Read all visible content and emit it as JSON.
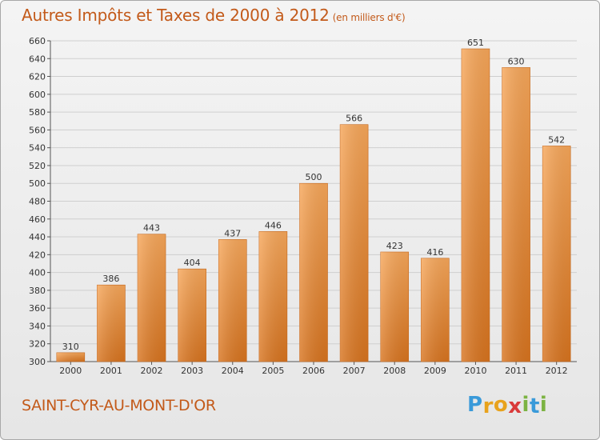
{
  "title": {
    "main": "Autres Impôts et Taxes de 2000 à 2012",
    "unit": "(en milliers d'€)"
  },
  "commune": "SAINT-CYR-AU-MONT-D'OR",
  "logo": {
    "letters": [
      "P",
      "r",
      "o",
      "x",
      "i",
      "t",
      "i"
    ],
    "colors": [
      "#3a9ad9",
      "#e8a21c",
      "#e8a21c",
      "#d93a3a",
      "#7cb342",
      "#3a9ad9",
      "#7cb342"
    ]
  },
  "chart_data": {
    "type": "bar",
    "title": "Autres Impôts et Taxes de 2000 à 2012",
    "subtitle": "(en milliers d'€)",
    "categories": [
      "2000",
      "2001",
      "2002",
      "2003",
      "2004",
      "2005",
      "2006",
      "2007",
      "2008",
      "2009",
      "2010",
      "2011",
      "2012"
    ],
    "values": [
      310,
      386,
      443,
      404,
      437,
      446,
      500,
      566,
      423,
      416,
      651,
      630,
      542
    ],
    "ylim": [
      300,
      660
    ],
    "yticks": [
      300,
      320,
      340,
      360,
      380,
      400,
      420,
      440,
      460,
      480,
      500,
      520,
      540,
      560,
      580,
      600,
      620,
      640,
      660
    ],
    "grid": "horizontal",
    "bar_color": "#e8852e",
    "xlabel": "",
    "ylabel": ""
  }
}
